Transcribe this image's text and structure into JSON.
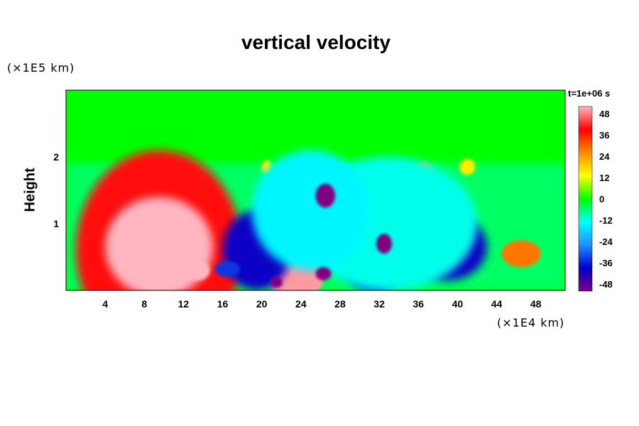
{
  "chart_data": {
    "type": "heatmap",
    "title": "vertical velocity",
    "ylabel": "Height",
    "x_unit_label": "(×1E4 km)",
    "y_unit_label": "(×1E5 km)",
    "time_label": "t=1e+06 s",
    "xlim": [
      0,
      51
    ],
    "ylim": [
      0,
      3
    ],
    "x_ticks": [
      4,
      8,
      12,
      16,
      20,
      24,
      28,
      32,
      36,
      40,
      44,
      48
    ],
    "y_ticks": [
      1,
      2
    ],
    "colorbar": {
      "range": [
        -52,
        52
      ],
      "ticks": [
        48,
        36,
        24,
        12,
        0,
        -12,
        -24,
        -36,
        -48
      ],
      "colors": [
        "#800080",
        "#0000cc",
        "#1e90ff",
        "#00ffff",
        "#00ff00",
        "#ffff00",
        "#ff8c00",
        "#ff0000",
        "#ffb6c1"
      ]
    },
    "features": [
      {
        "x": 9.5,
        "y": 0.6,
        "rx": 8.5,
        "ry": 1.5,
        "value": 40
      },
      {
        "x": 9.5,
        "y": 0.65,
        "rx": 5.5,
        "ry": 0.75,
        "value": 54
      },
      {
        "x": 13.5,
        "y": 0.3,
        "rx": 1.2,
        "ry": 0.15,
        "value": 54
      },
      {
        "x": 23.5,
        "y": 0.2,
        "rx": 2.8,
        "ry": 0.35,
        "value": 50
      },
      {
        "x": 28.8,
        "y": 1.4,
        "rx": 1.3,
        "ry": 0.3,
        "value": 30
      },
      {
        "x": 46.5,
        "y": 0.55,
        "rx": 2.0,
        "ry": 0.2,
        "value": 28
      },
      {
        "x": 36.5,
        "y": 1.8,
        "rx": 1.0,
        "ry": 0.12,
        "value": 22
      },
      {
        "x": 41,
        "y": 1.85,
        "rx": 0.8,
        "ry": 0.12,
        "value": 15
      },
      {
        "x": 20.5,
        "y": 1.85,
        "rx": 0.5,
        "ry": 0.1,
        "value": 15
      },
      {
        "x": 19.5,
        "y": 0.6,
        "rx": 3.5,
        "ry": 0.6,
        "value": -40
      },
      {
        "x": 26.5,
        "y": 1.45,
        "rx": 2.2,
        "ry": 0.35,
        "value": -42
      },
      {
        "x": 22.5,
        "y": 1.55,
        "rx": 1.5,
        "ry": 0.2,
        "value": -30
      },
      {
        "x": 31.5,
        "y": 0.65,
        "rx": 3.5,
        "ry": 0.7,
        "value": -34
      },
      {
        "x": 39,
        "y": 0.65,
        "rx": 4.0,
        "ry": 0.5,
        "value": -40
      },
      {
        "x": 33,
        "y": 1.0,
        "rx": 9.0,
        "ry": 1.0,
        "value": -12
      },
      {
        "x": 25,
        "y": 1.2,
        "rx": 6.0,
        "ry": 0.9,
        "value": -14
      },
      {
        "x": 16.5,
        "y": 0.32,
        "rx": 1.3,
        "ry": 0.12,
        "value": -34
      },
      {
        "x": 21.5,
        "y": 0.12,
        "rx": 0.6,
        "ry": 0.08,
        "value": -52
      },
      {
        "x": 26.3,
        "y": 0.25,
        "rx": 0.8,
        "ry": 0.1,
        "value": -52
      },
      {
        "x": 32.5,
        "y": 0.7,
        "rx": 0.8,
        "ry": 0.15,
        "value": -52
      },
      {
        "x": 26.5,
        "y": 1.42,
        "rx": 1.0,
        "ry": 0.18,
        "value": -52
      }
    ]
  }
}
